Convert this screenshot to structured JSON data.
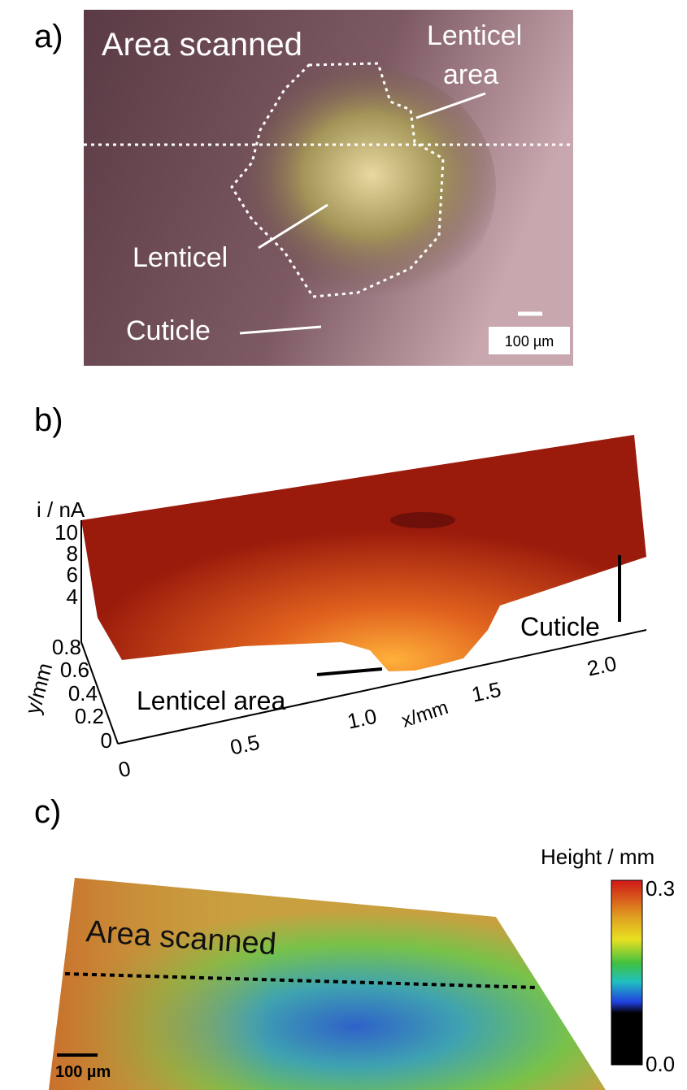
{
  "panel_a": {
    "label": "a)",
    "area_scanned": "Area scanned",
    "lenticel_area_lines": [
      "Lenticel",
      "area"
    ],
    "lenticel": "Lenticel",
    "cuticle": "Cuticle",
    "scale_bar": "100 µm"
  },
  "panel_b": {
    "label": "b)",
    "z_axis_label": "i / nA",
    "z_ticks": [
      "10",
      "8",
      "6",
      "4"
    ],
    "y_axis_label": "y/mm",
    "y_ticks": [
      "0.8",
      "0.6",
      "0.4",
      "0.2",
      "0"
    ],
    "x_axis_label": "x/mm",
    "x_ticks": [
      "0",
      "0.5",
      "1.0",
      "1.5",
      "2.0"
    ],
    "lenticel_area": "Lenticel area",
    "cuticle": "Cuticle"
  },
  "panel_c": {
    "label": "c)",
    "colorbar_title": "Height / mm",
    "colorbar_ticks": [
      "0.3",
      "0.0"
    ],
    "area_scanned": "Area scanned",
    "scale_bar": "100 µm"
  }
}
